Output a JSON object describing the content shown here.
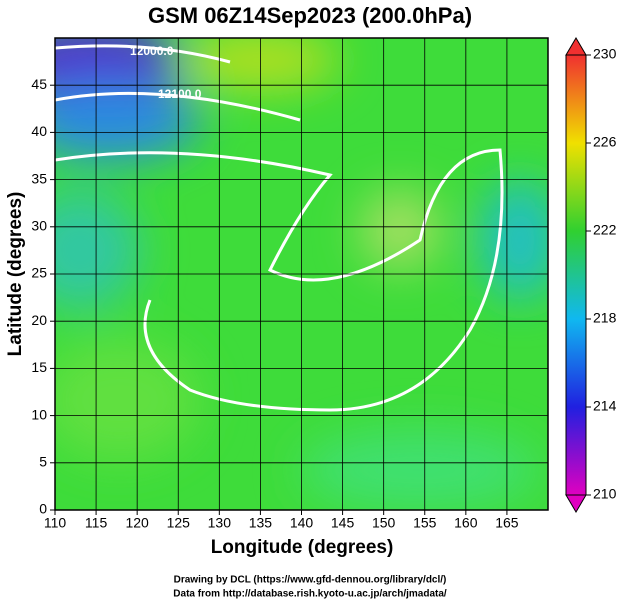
{
  "chart_data": {
    "type": "contour",
    "title": "GSM 06Z14Sep2023 (200.0hPa)",
    "xlabel": "Longitude (degrees)",
    "ylabel": "Latitude  (degrees)",
    "xlim": [
      110,
      170
    ],
    "xticks": [
      110,
      115,
      120,
      125,
      130,
      135,
      140,
      145,
      150,
      155,
      160,
      165
    ],
    "ylim": [
      0,
      50
    ],
    "yticks": [
      0,
      5,
      10,
      15,
      20,
      25,
      30,
      35,
      40,
      45
    ],
    "grid": true,
    "colorbar": {
      "lim": [
        210,
        230
      ],
      "ticks": [
        210,
        214,
        218,
        222,
        226,
        230
      ]
    },
    "contour_labels": [
      "12000.0",
      "12100.0"
    ],
    "credits": [
      "Drawing by DCL (https://www.gfd-dennou.org/library/dcl/)",
      "Data from http://database.rish.kyoto-u.ac.jp/arch/jmadata/"
    ]
  }
}
